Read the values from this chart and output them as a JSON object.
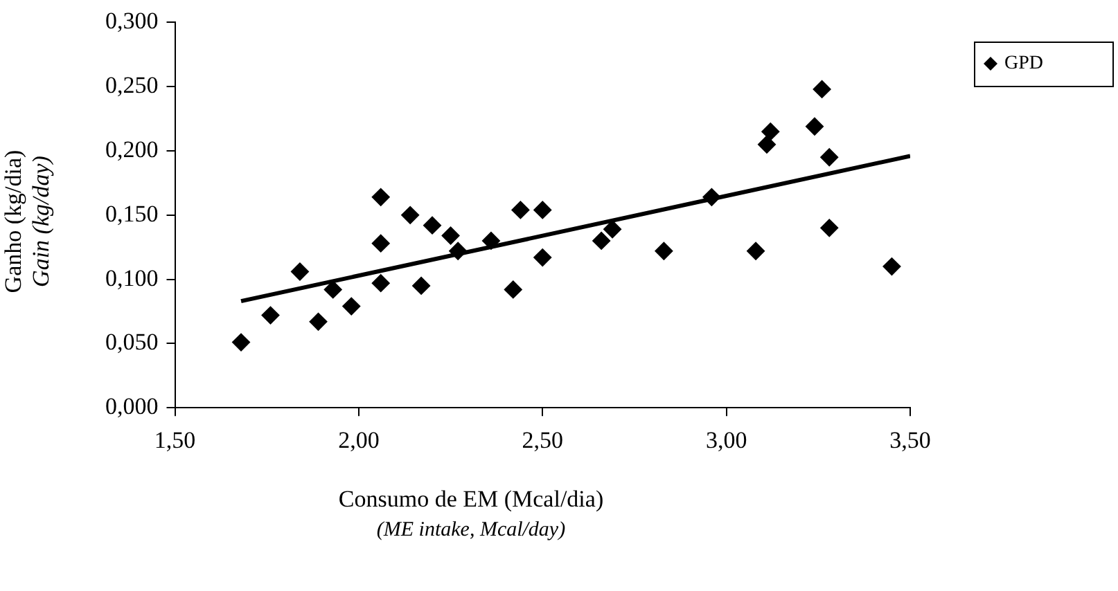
{
  "chart_data": {
    "type": "scatter",
    "xlabel": "Consumo de EM (Mcal/dia)\n(ME intake, Mcal/day)",
    "ylabel": "Ganho (kg/dia)\nGain (kg/day)",
    "xlim": [
      1.5,
      3.5
    ],
    "xticks": [
      {
        "value": 1.5,
        "label": "1,50"
      },
      {
        "value": 2,
        "label": "2,00"
      },
      {
        "value": 2.5,
        "label": "2,50"
      },
      {
        "value": 3,
        "label": "3,00"
      },
      {
        "value": 3.5,
        "label": "3,50"
      }
    ],
    "ylim": [
      0,
      0.3
    ],
    "yticks": [
      {
        "value": 0,
        "label": "0,000"
      },
      {
        "value": 0.05,
        "label": "0,050"
      },
      {
        "value": 0.1,
        "label": "0,100"
      },
      {
        "value": 0.15,
        "label": "0,150"
      },
      {
        "value": 0.2,
        "label": "0,200"
      },
      {
        "value": 0.25,
        "label": "0,250"
      },
      {
        "value": 0.3,
        "label": "0,300"
      }
    ],
    "grid": false,
    "legend": "top right",
    "marker": "diamond",
    "series": [
      {
        "name": "GPD",
        "type": "scatter",
        "color": "#000000",
        "x": [
          1.68,
          1.76,
          1.84,
          1.89,
          1.93,
          1.98,
          2.06,
          2.06,
          2.06,
          2.14,
          2.17,
          2.2,
          2.25,
          2.27,
          2.36,
          2.42,
          2.44,
          2.5,
          2.5,
          2.66,
          2.69,
          2.83,
          2.96,
          3.08,
          3.11,
          3.12,
          3.24,
          3.26,
          3.28,
          3.28,
          3.45
        ],
        "values": [
          0.051,
          0.072,
          0.106,
          0.067,
          0.092,
          0.079,
          0.164,
          0.128,
          0.097,
          0.15,
          0.095,
          0.142,
          0.134,
          0.122,
          0.13,
          0.092,
          0.154,
          0.154,
          0.117,
          0.13,
          0.139,
          0.122,
          0.164,
          0.122,
          0.205,
          0.215,
          0.219,
          0.248,
          0.195,
          0.14,
          0.11
        ]
      },
      {
        "type": "line",
        "marker": "none",
        "color": "#000000",
        "x": [
          1.68,
          3.5
        ],
        "values": [
          0.083,
          0.196
        ]
      }
    ]
  }
}
